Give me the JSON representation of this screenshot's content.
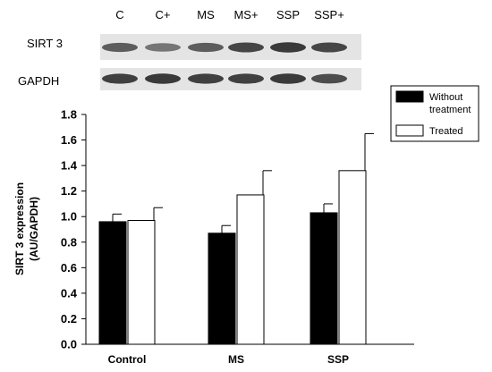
{
  "blot": {
    "lanes": [
      "C",
      "C+",
      "MS",
      "MS+",
      "SSP",
      "SSP+"
    ],
    "rows": [
      {
        "label": "SIRT 3",
        "band_intensity": [
          0.55,
          0.35,
          0.55,
          0.75,
          0.85,
          0.75
        ]
      },
      {
        "label": "GAPDH",
        "band_intensity": [
          0.8,
          0.85,
          0.8,
          0.8,
          0.85,
          0.7
        ]
      }
    ],
    "colors": {
      "background": "#e4e4e4",
      "band": "#1e1e1e"
    }
  },
  "chart_data": {
    "type": "bar",
    "categories": [
      "Control",
      "MS",
      "SSP"
    ],
    "series": [
      {
        "name": "Without treatment",
        "values": [
          0.96,
          0.87,
          1.03
        ],
        "errors": [
          0.06,
          0.06,
          0.07
        ],
        "color": "#000000"
      },
      {
        "name": "Treated",
        "values": [
          0.97,
          1.17,
          1.36
        ],
        "errors": [
          0.1,
          0.19,
          0.29
        ],
        "color": "#ffffff"
      }
    ],
    "ylabel_line1": "SIRT 3 expression",
    "ylabel_line2": "(AU/GAPDH)",
    "xlabel": "",
    "ylim": [
      0,
      1.8
    ],
    "yticks": [
      "0.0",
      "0.2",
      "0.4",
      "0.6",
      "0.8",
      "1.0",
      "1.2",
      "1.4",
      "1.6",
      "1.8"
    ],
    "legend": {
      "position": "top-right",
      "entries": [
        "Without",
        "treatment",
        "Treated"
      ]
    },
    "grid": false
  }
}
